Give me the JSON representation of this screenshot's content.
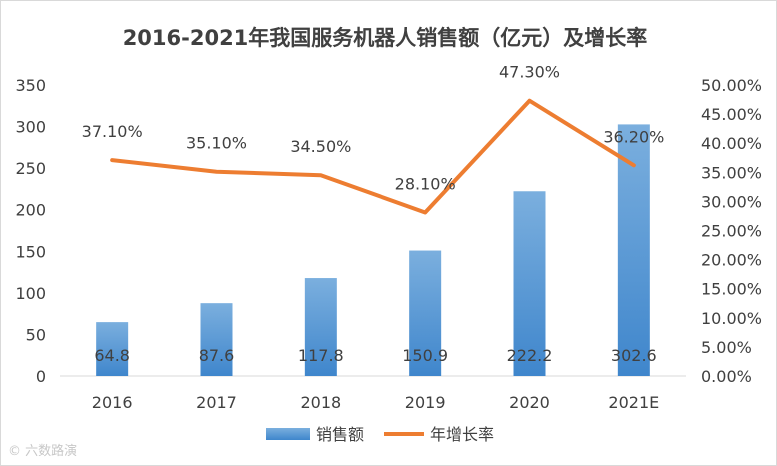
{
  "chart_data": {
    "type": "bar+line",
    "title": "2016-2021年我国服务机器人销售额（亿元）及增长率",
    "categories": [
      "2016",
      "2017",
      "2018",
      "2019",
      "2020",
      "2021E"
    ],
    "series": [
      {
        "name": "销售额",
        "type": "bar",
        "axis": "left",
        "values": [
          64.8,
          87.6,
          117.8,
          150.9,
          222.2,
          302.6
        ],
        "labels": [
          "64.8",
          "87.6",
          "117.8",
          "150.9",
          "222.2",
          "302.6"
        ]
      },
      {
        "name": "年增长率",
        "type": "line",
        "axis": "right",
        "values": [
          37.1,
          35.1,
          34.5,
          28.1,
          47.3,
          36.2
        ],
        "labels": [
          "37.10%",
          "35.10%",
          "34.50%",
          "28.10%",
          "47.30%",
          "36.20%"
        ]
      }
    ],
    "y_left": {
      "min": 0,
      "max": 350,
      "ticks": [
        "0",
        "50",
        "100",
        "150",
        "200",
        "250",
        "300",
        "350"
      ]
    },
    "y_right": {
      "min": 0,
      "max": 50,
      "ticks": [
        "0.00%",
        "5.00%",
        "10.00%",
        "15.00%",
        "20.00%",
        "25.00%",
        "30.00%",
        "35.00%",
        "40.00%",
        "45.00%",
        "50.00%"
      ]
    },
    "legend": {
      "position": "bottom",
      "entries": [
        "销售额",
        "年增长率"
      ]
    },
    "colors": {
      "bar_top": "#7bafde",
      "bar_bottom": "#3f86cc",
      "line": "#ed7d31",
      "axis_text": "#404040",
      "title": "#404040"
    }
  },
  "watermark": "© 六数路演"
}
